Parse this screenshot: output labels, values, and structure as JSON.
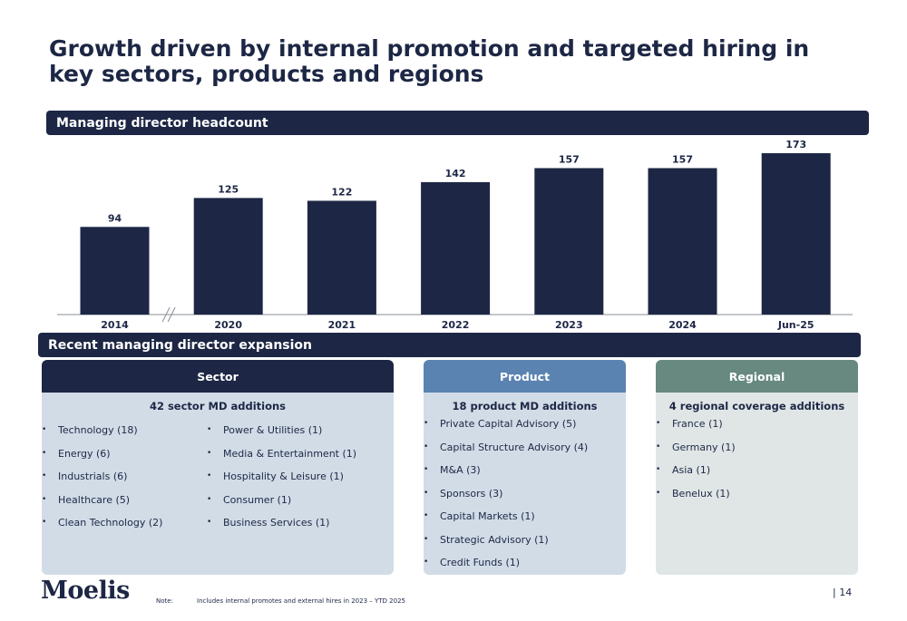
{
  "title": "Growth driven by internal promotion and targeted hiring in key sectors, products and regions",
  "chart_header": "Managing director headcount",
  "chart_data": {
    "type": "bar",
    "title": "Managing director headcount",
    "categories": [
      "2014",
      "2020",
      "2021",
      "2022",
      "2023",
      "2024",
      "Jun-25"
    ],
    "values": [
      94,
      125,
      122,
      142,
      157,
      157,
      173
    ],
    "axis_break_after": "2014",
    "bar_color": "#1d2745",
    "ylim": [
      0,
      173
    ],
    "grid": false
  },
  "expansion_header": "Recent managing director expansion",
  "sector": {
    "title": "Sector",
    "subtitle": "42 sector MD additions",
    "col1": [
      "Technology (18)",
      "Energy (6)",
      "Industrials (6)",
      "Healthcare (5)",
      "Clean Technology (2)"
    ],
    "col2": [
      "Power & Utilities (1)",
      "Media & Entertainment (1)",
      "Hospitality & Leisure (1)",
      "Consumer (1)",
      "Business Services (1)"
    ],
    "color": "#1d2745"
  },
  "product": {
    "title": "Product",
    "subtitle": "18 product MD additions",
    "items": [
      "Private Capital Advisory (5)",
      "Capital Structure Advisory (4)",
      "M&A (3)",
      "Sponsors (3)",
      "Capital Markets (1)",
      "Strategic Advisory (1)",
      "Credit Funds (1)"
    ],
    "color": "#5b83b1"
  },
  "regional": {
    "title": "Regional",
    "subtitle": "4 regional coverage additions",
    "items": [
      "France (1)",
      "Germany (1)",
      "Asia (1)",
      "Benelux (1)"
    ],
    "color": "#678980"
  },
  "footer": {
    "logo": "Moelis",
    "note_label": "Note:",
    "note_text": "Includes internal promotes and external hires in 2023 – YTD 2025",
    "page": "|  14"
  }
}
